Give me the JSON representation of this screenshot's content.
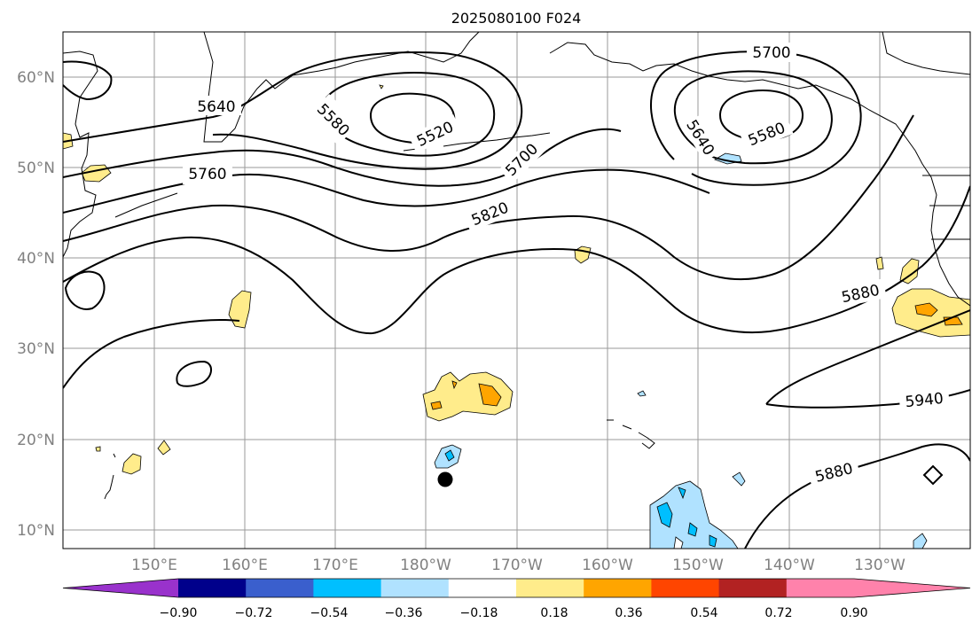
{
  "title": "2025080100 F024",
  "longitude_labels": [
    "150°E",
    "160°E",
    "170°E",
    "180°W",
    "170°W",
    "160°W",
    "150°W",
    "140°W",
    "130°W"
  ],
  "latitude_labels": [
    "60°N",
    "50°N",
    "40°N",
    "30°N",
    "20°N",
    "10°N"
  ],
  "contour_labels": [
    "5640",
    "5580",
    "5520",
    "5700",
    "5760",
    "5820",
    "5700",
    "5640",
    "5580",
    "5880",
    "5940",
    "5880"
  ],
  "colorbar": {
    "tick_labels": [
      "−0.90",
      "−0.72",
      "−0.54",
      "−0.36",
      "−0.18",
      "0.18",
      "0.36",
      "0.54",
      "0.72",
      "0.90"
    ],
    "colors": [
      "#9932cc",
      "#00008b",
      "#3a5fcd",
      "#00bfff",
      "#b0e2ff",
      "#ffffff",
      "#ffec8b",
      "#ffa500",
      "#ff4500",
      "#b22222",
      "#ff82ab",
      "#ff82ab"
    ]
  }
}
